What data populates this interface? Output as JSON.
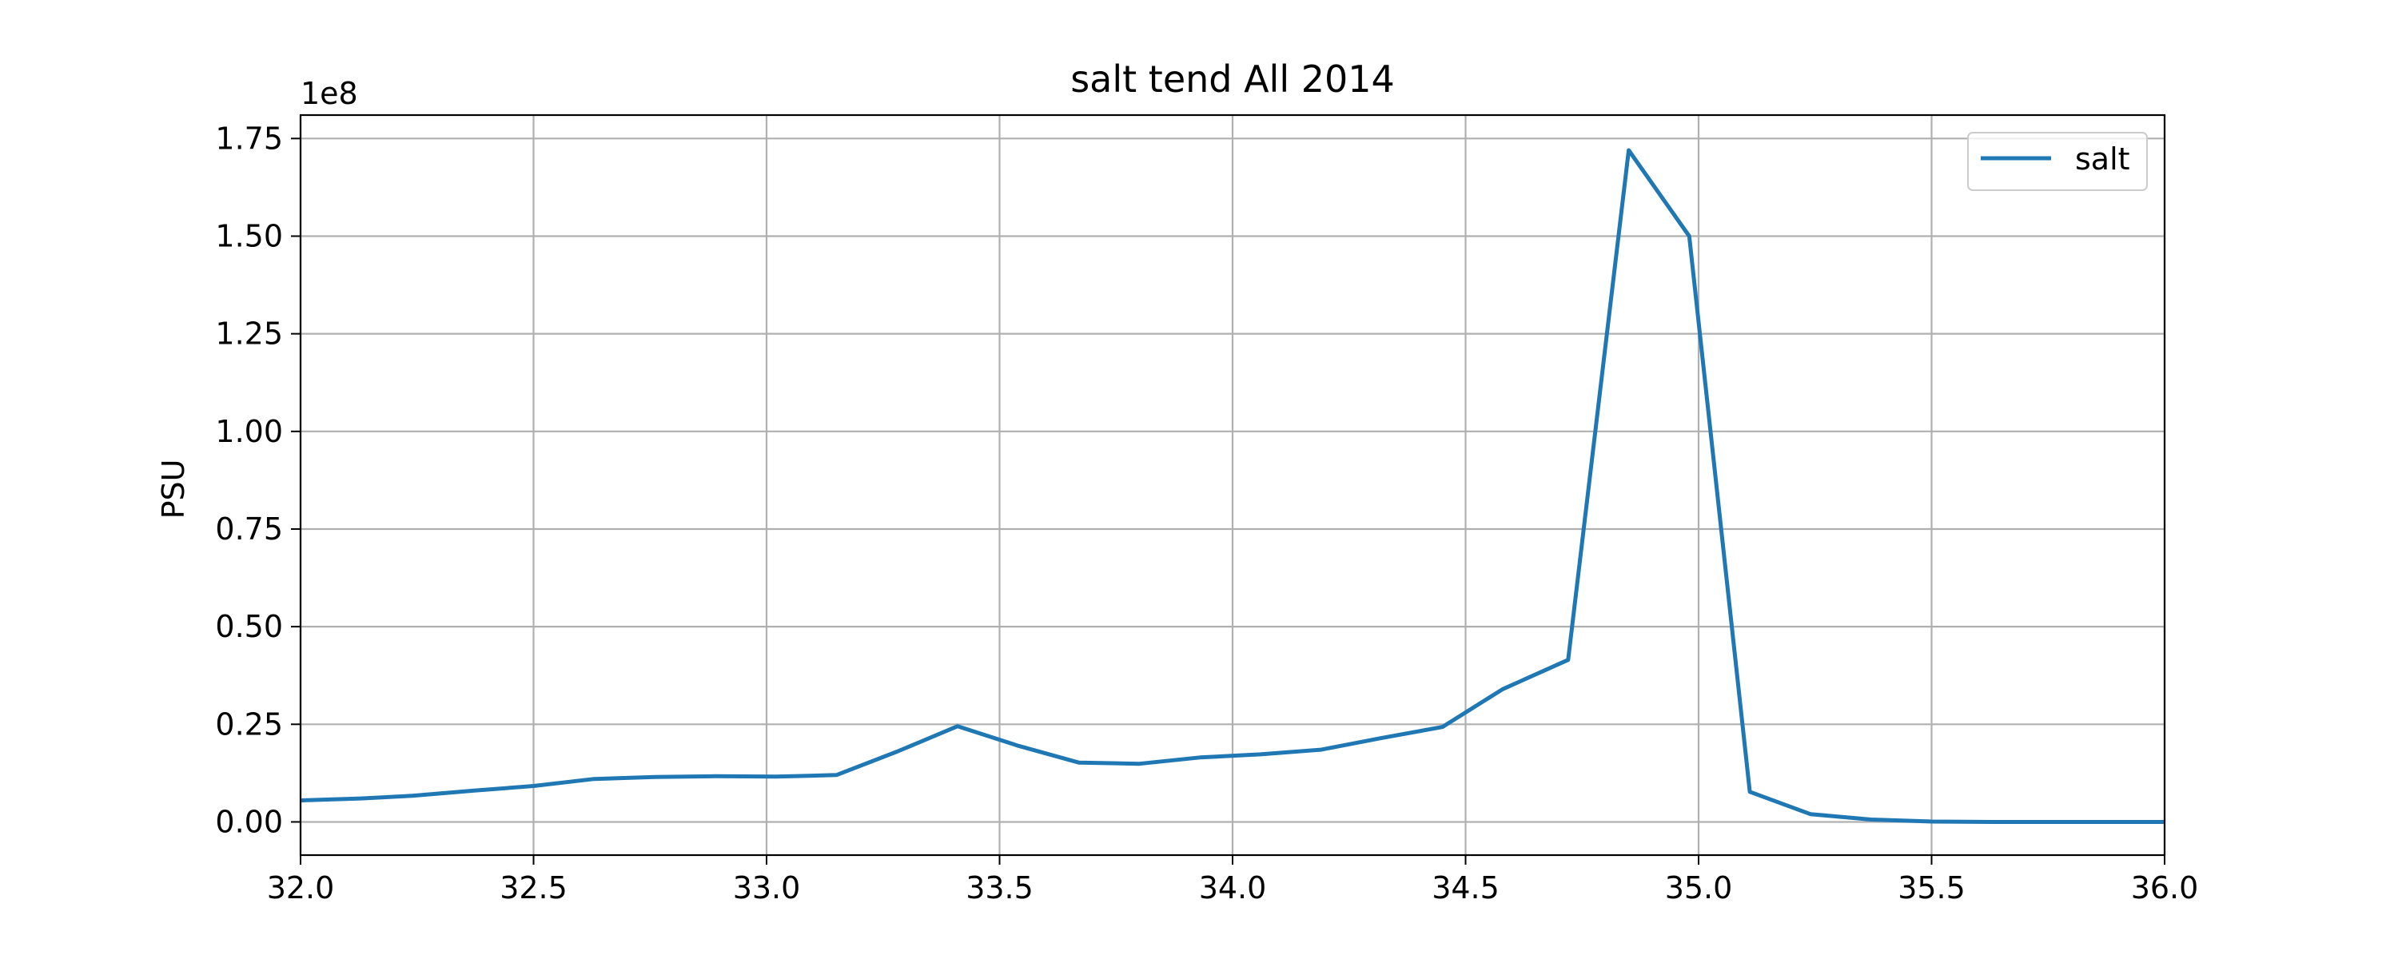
{
  "chart_data": {
    "type": "line",
    "title": "salt tend All 2014",
    "xlabel": "",
    "ylabel": "PSU",
    "y_offset_label": "1e8",
    "xlim": [
      32.0,
      36.0
    ],
    "ylim": [
      -0.085,
      1.81
    ],
    "xticks": [
      32.0,
      32.5,
      33.0,
      33.5,
      34.0,
      34.5,
      35.0,
      35.5,
      36.0
    ],
    "xtick_labels": [
      "32.0",
      "32.5",
      "33.0",
      "33.5",
      "34.0",
      "34.5",
      "35.0",
      "35.5",
      "36.0"
    ],
    "yticks": [
      0.0,
      0.25,
      0.5,
      0.75,
      1.0,
      1.25,
      1.5,
      1.75
    ],
    "ytick_labels": [
      "0.00",
      "0.25",
      "0.50",
      "0.75",
      "1.00",
      "1.25",
      "1.50",
      "1.75"
    ],
    "grid": true,
    "legend_position": "top-right",
    "series": [
      {
        "name": "salt",
        "color": "#1f77b4",
        "x": [
          32.0,
          32.13,
          32.24,
          32.37,
          32.5,
          32.63,
          32.76,
          32.89,
          33.02,
          33.15,
          33.28,
          33.41,
          33.54,
          33.67,
          33.8,
          33.93,
          34.06,
          34.19,
          34.32,
          34.45,
          34.58,
          34.72,
          34.85,
          34.98,
          35.11,
          35.24,
          35.37,
          35.5,
          35.63,
          35.76,
          35.89,
          36.0
        ],
        "y": [
          0.055,
          0.06,
          0.067,
          0.08,
          0.092,
          0.11,
          0.115,
          0.117,
          0.116,
          0.12,
          0.18,
          0.245,
          0.195,
          0.152,
          0.149,
          0.165,
          0.173,
          0.185,
          0.215,
          0.243,
          0.34,
          0.415,
          1.72,
          1.5,
          0.077,
          0.02,
          0.006,
          0.001,
          0.0,
          0.0,
          0.0,
          0.0
        ]
      }
    ]
  }
}
